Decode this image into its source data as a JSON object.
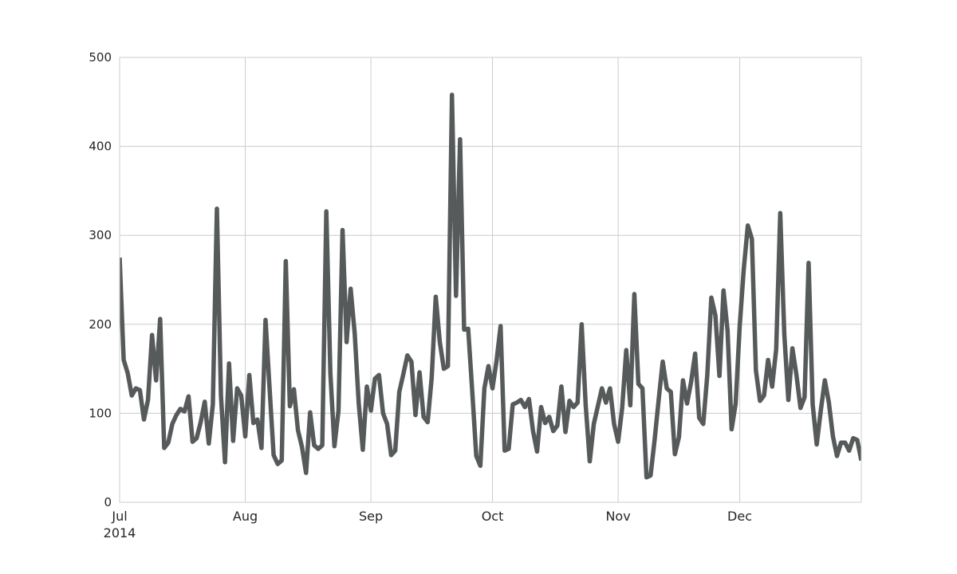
{
  "chart_data": {
    "type": "line",
    "title": "",
    "xlabel": "",
    "ylabel": "",
    "x_range": [
      "2014-07-01",
      "2014-12-31"
    ],
    "ylim": [
      0,
      500
    ],
    "grid": true,
    "y_ticks": [
      0,
      100,
      200,
      300,
      400,
      500
    ],
    "x_ticks": [
      {
        "date": "2014-07-01",
        "label": "Jul",
        "sublabel": "2014"
      },
      {
        "date": "2014-08-01",
        "label": "Aug",
        "sublabel": ""
      },
      {
        "date": "2014-09-01",
        "label": "Sep",
        "sublabel": ""
      },
      {
        "date": "2014-10-01",
        "label": "Oct",
        "sublabel": ""
      },
      {
        "date": "2014-11-01",
        "label": "Nov",
        "sublabel": ""
      },
      {
        "date": "2014-12-01",
        "label": "Dec",
        "sublabel": ""
      }
    ],
    "series": [
      {
        "color": "#565a5a",
        "start_date": "2014-07-01",
        "values": [
          275,
          160,
          145,
          120,
          128,
          126,
          93,
          115,
          188,
          137,
          206,
          61,
          67,
          88,
          98,
          105,
          102,
          119,
          68,
          72,
          90,
          113,
          66,
          110,
          330,
          120,
          45,
          156,
          69,
          128,
          120,
          74,
          143,
          89,
          93,
          61,
          205,
          128,
          53,
          43,
          47,
          271,
          108,
          127,
          81,
          62,
          33,
          101,
          64,
          60,
          64,
          327,
          145,
          63,
          103,
          306,
          180,
          240,
          190,
          111,
          59,
          130,
          103,
          139,
          143,
          100,
          88,
          53,
          58,
          124,
          144,
          165,
          158,
          98,
          146,
          96,
          90,
          140,
          231,
          180,
          150,
          153,
          458,
          232,
          408,
          194,
          195,
          125,
          52,
          41,
          128,
          153,
          128,
          159,
          198,
          58,
          60,
          110,
          112,
          115,
          107,
          116,
          80,
          57,
          107,
          89,
          96,
          80,
          86,
          130,
          79,
          114,
          107,
          112,
          200,
          109,
          46,
          88,
          108,
          128,
          112,
          128,
          88,
          68,
          106,
          171,
          109,
          234,
          133,
          128,
          28,
          30,
          70,
          115,
          158,
          128,
          124,
          54,
          73,
          137,
          111,
          135,
          167,
          95,
          88,
          143,
          230,
          210,
          142,
          238,
          193,
          82,
          111,
          198,
          262,
          311,
          296,
          148,
          114,
          120,
          160,
          130,
          172,
          325,
          189,
          115,
          173,
          143,
          106,
          118,
          269,
          110,
          65,
          103,
          137,
          112,
          74,
          52,
          67,
          67,
          58,
          72,
          70,
          47
        ]
      }
    ]
  }
}
